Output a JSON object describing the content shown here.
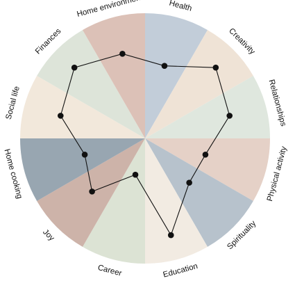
{
  "chart_data": {
    "type": "radar",
    "categories": [
      "Health",
      "Creativity",
      "Relationships",
      "Physical activity",
      "Spirituality",
      "Education",
      "Career",
      "Joy",
      "Home cooking",
      "Social life",
      "Finances",
      "Home environment"
    ],
    "values": [
      6,
      8,
      7,
      5,
      5,
      8,
      3,
      6,
      5,
      7,
      8,
      7
    ],
    "rlim": [
      0,
      10
    ],
    "sector_colors": [
      "#c2cdd9",
      "#efe3d6",
      "#dfe7de",
      "#e5d1c7",
      "#b7c2cc",
      "#f2ebe2",
      "#dce3d4",
      "#cdb3a9",
      "#98a6b1",
      "#f2e8db",
      "#dde4d9",
      "#dcc1b7"
    ],
    "line_color": "#111111",
    "marker": "filled-circle",
    "grid": false,
    "legend": "none"
  }
}
